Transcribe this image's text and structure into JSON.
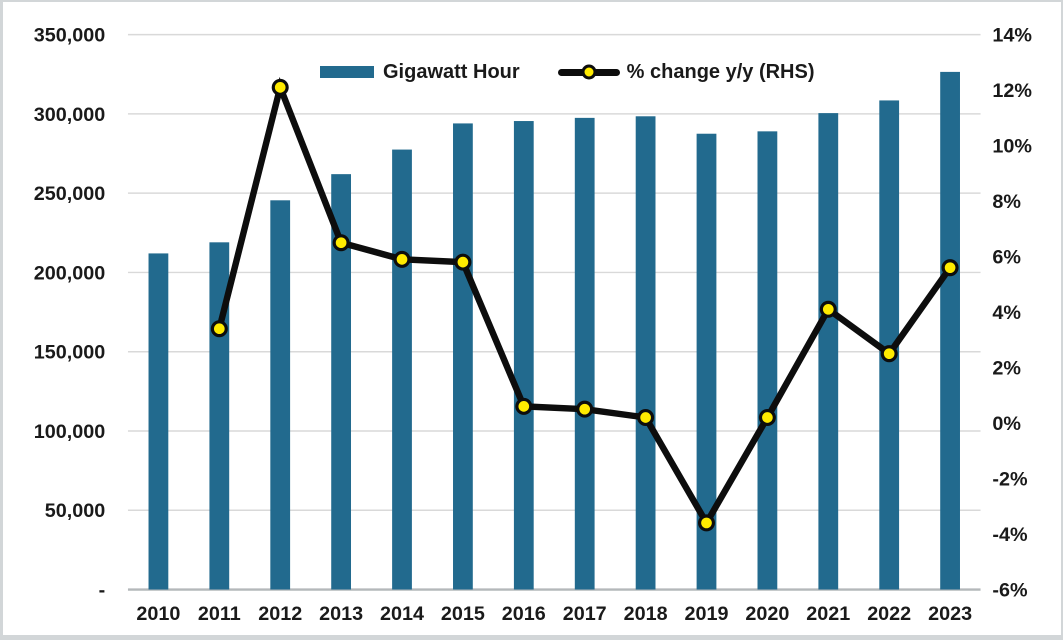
{
  "chart_data": {
    "type": "bar",
    "subtype": "combo-bar-line",
    "grid": true,
    "legend_position": "top-center",
    "categories": [
      "2010",
      "2011",
      "2012",
      "2013",
      "2014",
      "2015",
      "2016",
      "2017",
      "2018",
      "2019",
      "2020",
      "2021",
      "2022",
      "2023"
    ],
    "series": [
      {
        "name": "Gigawatt Hour",
        "type": "bar",
        "axis": "left",
        "color": "#226a8e",
        "values": [
          212000,
          219000,
          245500,
          262000,
          277500,
          294000,
          295500,
          297500,
          298500,
          287500,
          289000,
          300500,
          308500,
          326500
        ]
      },
      {
        "name": "% change y/y (RHS)",
        "type": "line",
        "axis": "right",
        "color": "#0d0d0d",
        "marker_color": "#ffeb00",
        "values": [
          null,
          3.4,
          12.1,
          6.5,
          5.9,
          5.8,
          0.6,
          0.5,
          0.2,
          -3.6,
          0.2,
          4.1,
          2.5,
          5.6
        ]
      }
    ],
    "left_axis": {
      "min": 0,
      "max": 350000,
      "step": 50000,
      "tick_labels": [
        "350,000",
        "300,000",
        "250,000",
        "200,000",
        "150,000",
        "100,000",
        "50,000",
        "-"
      ]
    },
    "right_axis": {
      "min": -6,
      "max": 14,
      "step": 2,
      "tick_labels": [
        "14%",
        "12%",
        "10%",
        "8%",
        "6%",
        "4%",
        "2%",
        "0%",
        "-2%",
        "-4%",
        "-6%"
      ]
    }
  },
  "colors": {
    "bar": "#226a8e",
    "line": "#0d0d0d",
    "marker_fill": "#ffeb00",
    "marker_stroke": "#0d0d0d",
    "gridline": "#d9d9d9",
    "axis_line": "#b4b8ba",
    "text": "#1a1a1a",
    "background": "#ffffff"
  }
}
